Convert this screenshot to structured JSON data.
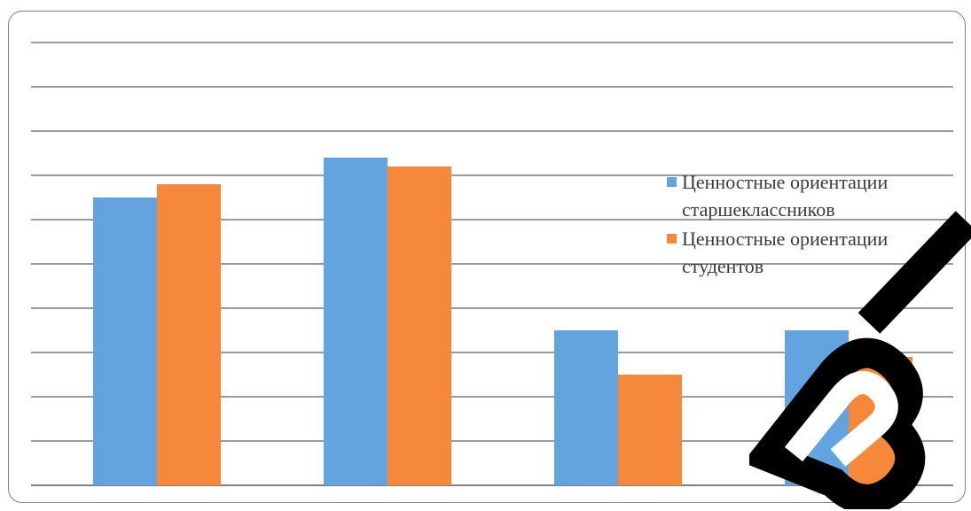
{
  "chart_data": {
    "type": "bar",
    "categories": [
      "",
      "",
      "",
      ""
    ],
    "series": [
      {
        "name": "Ценностные ориентации старшеклассников",
        "color": "#63a3df",
        "values": [
          6.5,
          7.4,
          3.5,
          3.5
        ]
      },
      {
        "name": "Ценностные ориентации студентов",
        "color": "#f6883b",
        "values": [
          6.8,
          7.2,
          2.5,
          2.9
        ]
      }
    ],
    "ylim": [
      0,
      10
    ],
    "y_ticks": [
      0,
      1,
      2,
      3,
      4,
      5,
      6,
      7,
      8,
      9,
      10
    ],
    "grid": true,
    "legend_position": "right"
  },
  "watermark": {
    "icon": "vgu-watermark-logo",
    "color": "#000000"
  }
}
